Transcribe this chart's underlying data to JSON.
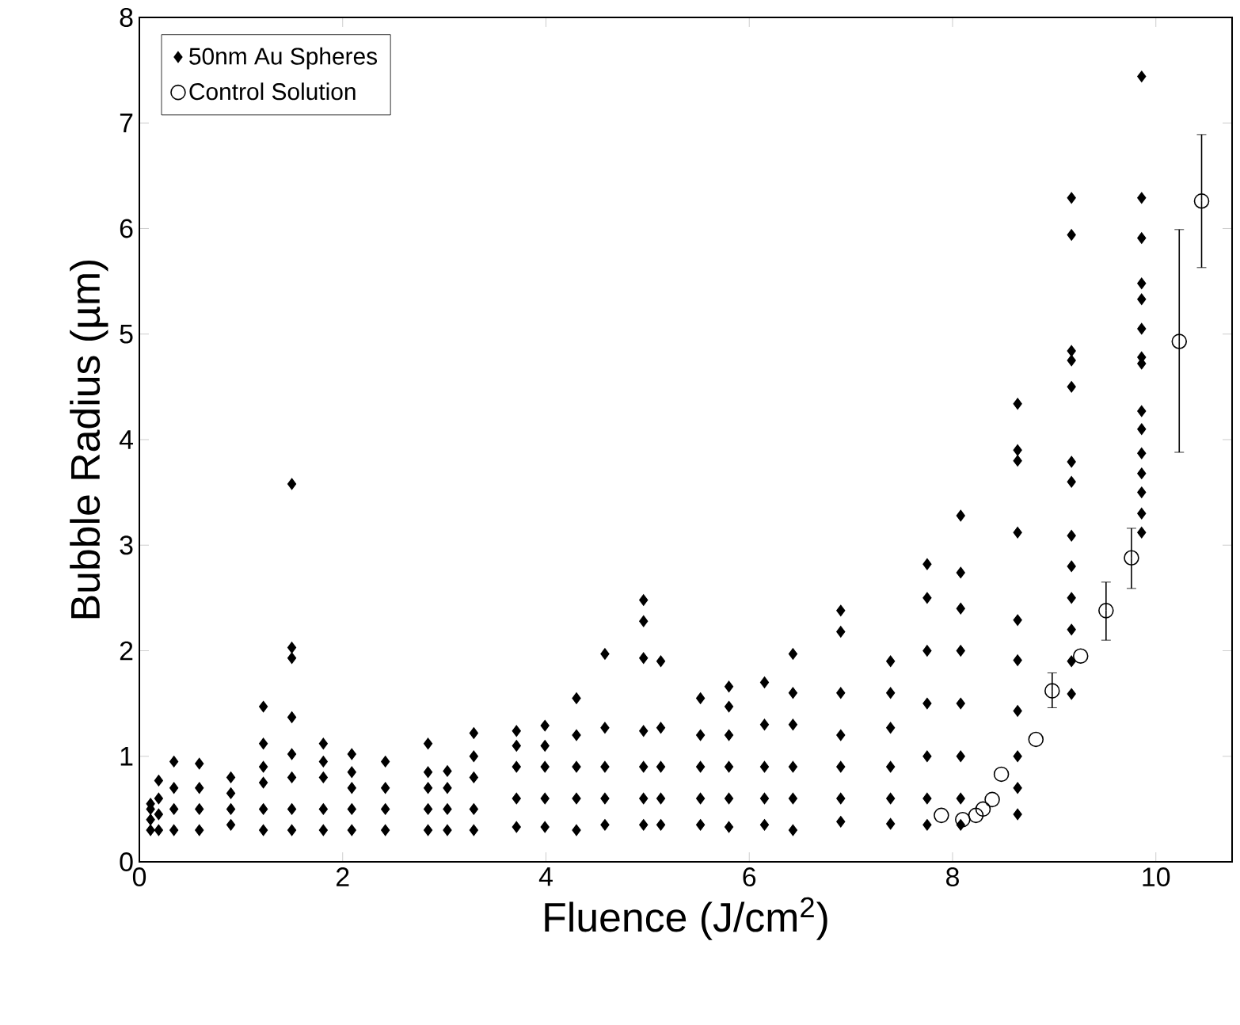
{
  "chart_data": {
    "type": "scatter",
    "xlabel": "Fluence (J/cm$^{2}$)",
    "ylabel": "Bubble Radius (µm)",
    "xlim": [
      0,
      10.75
    ],
    "ylim": [
      0,
      8
    ],
    "xticks": [
      0,
      2,
      4,
      6,
      8,
      10
    ],
    "yticks": [
      0,
      1,
      2,
      3,
      4,
      5,
      6,
      7,
      8
    ],
    "legend": "top left",
    "series": [
      {
        "name": "50nm Au Spheres",
        "color": "#000000",
        "marker": "diamond",
        "x": [
          0.11,
          0.11,
          0.11,
          0.11,
          0.19,
          0.19,
          0.19,
          0.19,
          0.34,
          0.34,
          0.34,
          0.34,
          0.59,
          0.59,
          0.59,
          0.59,
          0.9,
          0.9,
          0.9,
          0.9,
          1.22,
          1.22,
          1.22,
          1.22,
          1.22,
          1.22,
          1.5,
          1.5,
          1.5,
          1.5,
          1.5,
          1.5,
          1.5,
          1.5,
          1.81,
          1.81,
          1.81,
          1.81,
          1.81,
          2.09,
          2.09,
          2.09,
          2.09,
          2.09,
          2.42,
          2.42,
          2.42,
          2.42,
          2.84,
          2.84,
          2.84,
          2.84,
          2.84,
          3.03,
          3.03,
          3.03,
          3.03,
          3.29,
          3.29,
          3.29,
          3.29,
          3.29,
          3.71,
          3.71,
          3.71,
          3.71,
          3.71,
          3.99,
          3.99,
          3.99,
          3.99,
          3.99,
          4.3,
          4.3,
          4.3,
          4.3,
          4.3,
          4.58,
          4.58,
          4.58,
          4.58,
          4.58,
          4.96,
          4.96,
          4.96,
          4.96,
          4.96,
          4.96,
          4.96,
          5.13,
          5.13,
          5.13,
          5.13,
          5.13,
          5.52,
          5.52,
          5.52,
          5.52,
          5.52,
          5.8,
          5.8,
          5.8,
          5.8,
          5.8,
          5.8,
          6.15,
          6.15,
          6.15,
          6.15,
          6.15,
          6.43,
          6.43,
          6.43,
          6.43,
          6.43,
          6.43,
          6.9,
          6.9,
          6.9,
          6.9,
          6.9,
          6.9,
          6.9,
          7.39,
          7.39,
          7.39,
          7.39,
          7.39,
          7.39,
          7.75,
          7.75,
          7.75,
          7.75,
          7.75,
          7.75,
          7.75,
          8.08,
          8.08,
          8.08,
          8.08,
          8.08,
          8.08,
          8.08,
          8.08,
          8.64,
          8.64,
          8.64,
          8.64,
          8.64,
          8.64,
          8.64,
          8.64,
          8.64,
          8.64,
          9.17,
          9.17,
          9.17,
          9.17,
          9.17,
          9.17,
          9.17,
          9.17,
          9.17,
          9.17,
          9.17,
          9.17,
          9.17,
          9.86,
          9.86,
          9.86,
          9.86,
          9.86,
          9.86,
          9.86,
          9.86,
          9.86,
          9.86,
          9.86,
          9.86,
          9.86,
          9.86,
          9.86
        ],
        "values": [
          0.3,
          0.4,
          0.5,
          0.55,
          0.3,
          0.45,
          0.6,
          0.77,
          0.3,
          0.5,
          0.7,
          0.95,
          0.3,
          0.5,
          0.7,
          0.93,
          0.35,
          0.5,
          0.65,
          0.8,
          0.3,
          0.5,
          0.75,
          0.9,
          1.12,
          1.47,
          0.3,
          0.5,
          0.8,
          1.02,
          1.37,
          1.93,
          2.03,
          3.58,
          0.3,
          0.5,
          0.8,
          0.95,
          1.12,
          0.3,
          0.5,
          0.7,
          0.85,
          1.02,
          0.3,
          0.5,
          0.7,
          0.95,
          0.3,
          0.5,
          0.7,
          0.85,
          1.12,
          0.3,
          0.5,
          0.7,
          0.86,
          0.3,
          0.5,
          0.8,
          1.0,
          1.22,
          0.33,
          0.6,
          0.9,
          1.1,
          1.24,
          0.33,
          0.6,
          0.9,
          1.1,
          1.29,
          0.3,
          0.6,
          0.9,
          1.2,
          1.55,
          0.35,
          0.6,
          0.9,
          1.27,
          1.97,
          0.35,
          0.6,
          0.9,
          1.24,
          1.93,
          2.28,
          2.48,
          0.35,
          0.6,
          0.9,
          1.27,
          1.9,
          0.35,
          0.6,
          0.9,
          1.2,
          1.55,
          0.33,
          0.6,
          0.9,
          1.2,
          1.47,
          1.66,
          0.35,
          0.6,
          0.9,
          1.3,
          1.7,
          0.3,
          0.6,
          0.9,
          1.3,
          1.6,
          1.97,
          0.38,
          0.6,
          0.9,
          1.2,
          1.6,
          2.18,
          2.38,
          0.36,
          0.6,
          0.9,
          1.27,
          1.6,
          1.9,
          0.35,
          0.6,
          1.0,
          1.5,
          2.0,
          2.5,
          2.82,
          0.35,
          0.6,
          1.0,
          1.5,
          2.0,
          2.4,
          2.74,
          3.28,
          0.45,
          0.7,
          1.0,
          1.43,
          1.91,
          2.29,
          3.12,
          3.8,
          3.9,
          4.34,
          1.59,
          1.9,
          2.2,
          2.5,
          2.8,
          3.09,
          3.6,
          3.79,
          4.5,
          4.75,
          4.84,
          5.94,
          6.29,
          3.12,
          3.3,
          3.5,
          3.68,
          3.87,
          4.1,
          4.27,
          4.72,
          4.78,
          5.05,
          5.33,
          5.48,
          5.91,
          6.29,
          7.44
        ]
      },
      {
        "name": "Control Solution",
        "color": "#000000",
        "marker": "circle",
        "x": [
          7.89,
          8.1,
          8.23,
          8.3,
          8.39,
          8.48,
          8.82,
          8.98,
          9.26,
          9.51,
          9.76,
          10.23,
          10.45
        ],
        "values": [
          0.44,
          0.4,
          0.44,
          0.5,
          0.59,
          0.83,
          1.16,
          1.62,
          1.95,
          2.38,
          2.88,
          4.93,
          6.26
        ],
        "errors": [
          null,
          null,
          null,
          null,
          null,
          null,
          null,
          [
            1.46,
            1.79
          ],
          null,
          [
            2.1,
            2.65
          ],
          [
            2.59,
            3.16
          ],
          [
            3.88,
            5.99
          ],
          [
            5.63,
            6.89
          ]
        ]
      }
    ]
  }
}
